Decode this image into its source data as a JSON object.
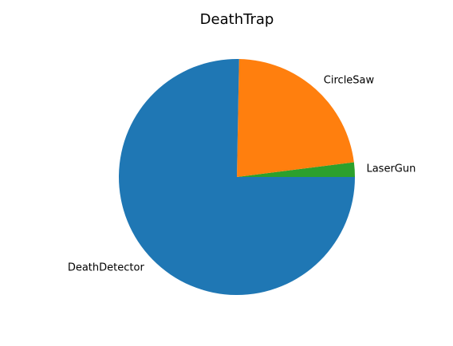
{
  "chart_data": {
    "type": "pie",
    "title": "DeathTrap",
    "categories": [
      "LaserGun",
      "CircleSaw",
      "DeathDetector"
    ],
    "values": [
      2,
      22.7,
      75.3
    ],
    "colors": [
      "#2ca02c",
      "#ff7f0e",
      "#1f77b4"
    ],
    "legend": "none",
    "start_angle_deg": 0,
    "direction": "counterclockwise"
  }
}
